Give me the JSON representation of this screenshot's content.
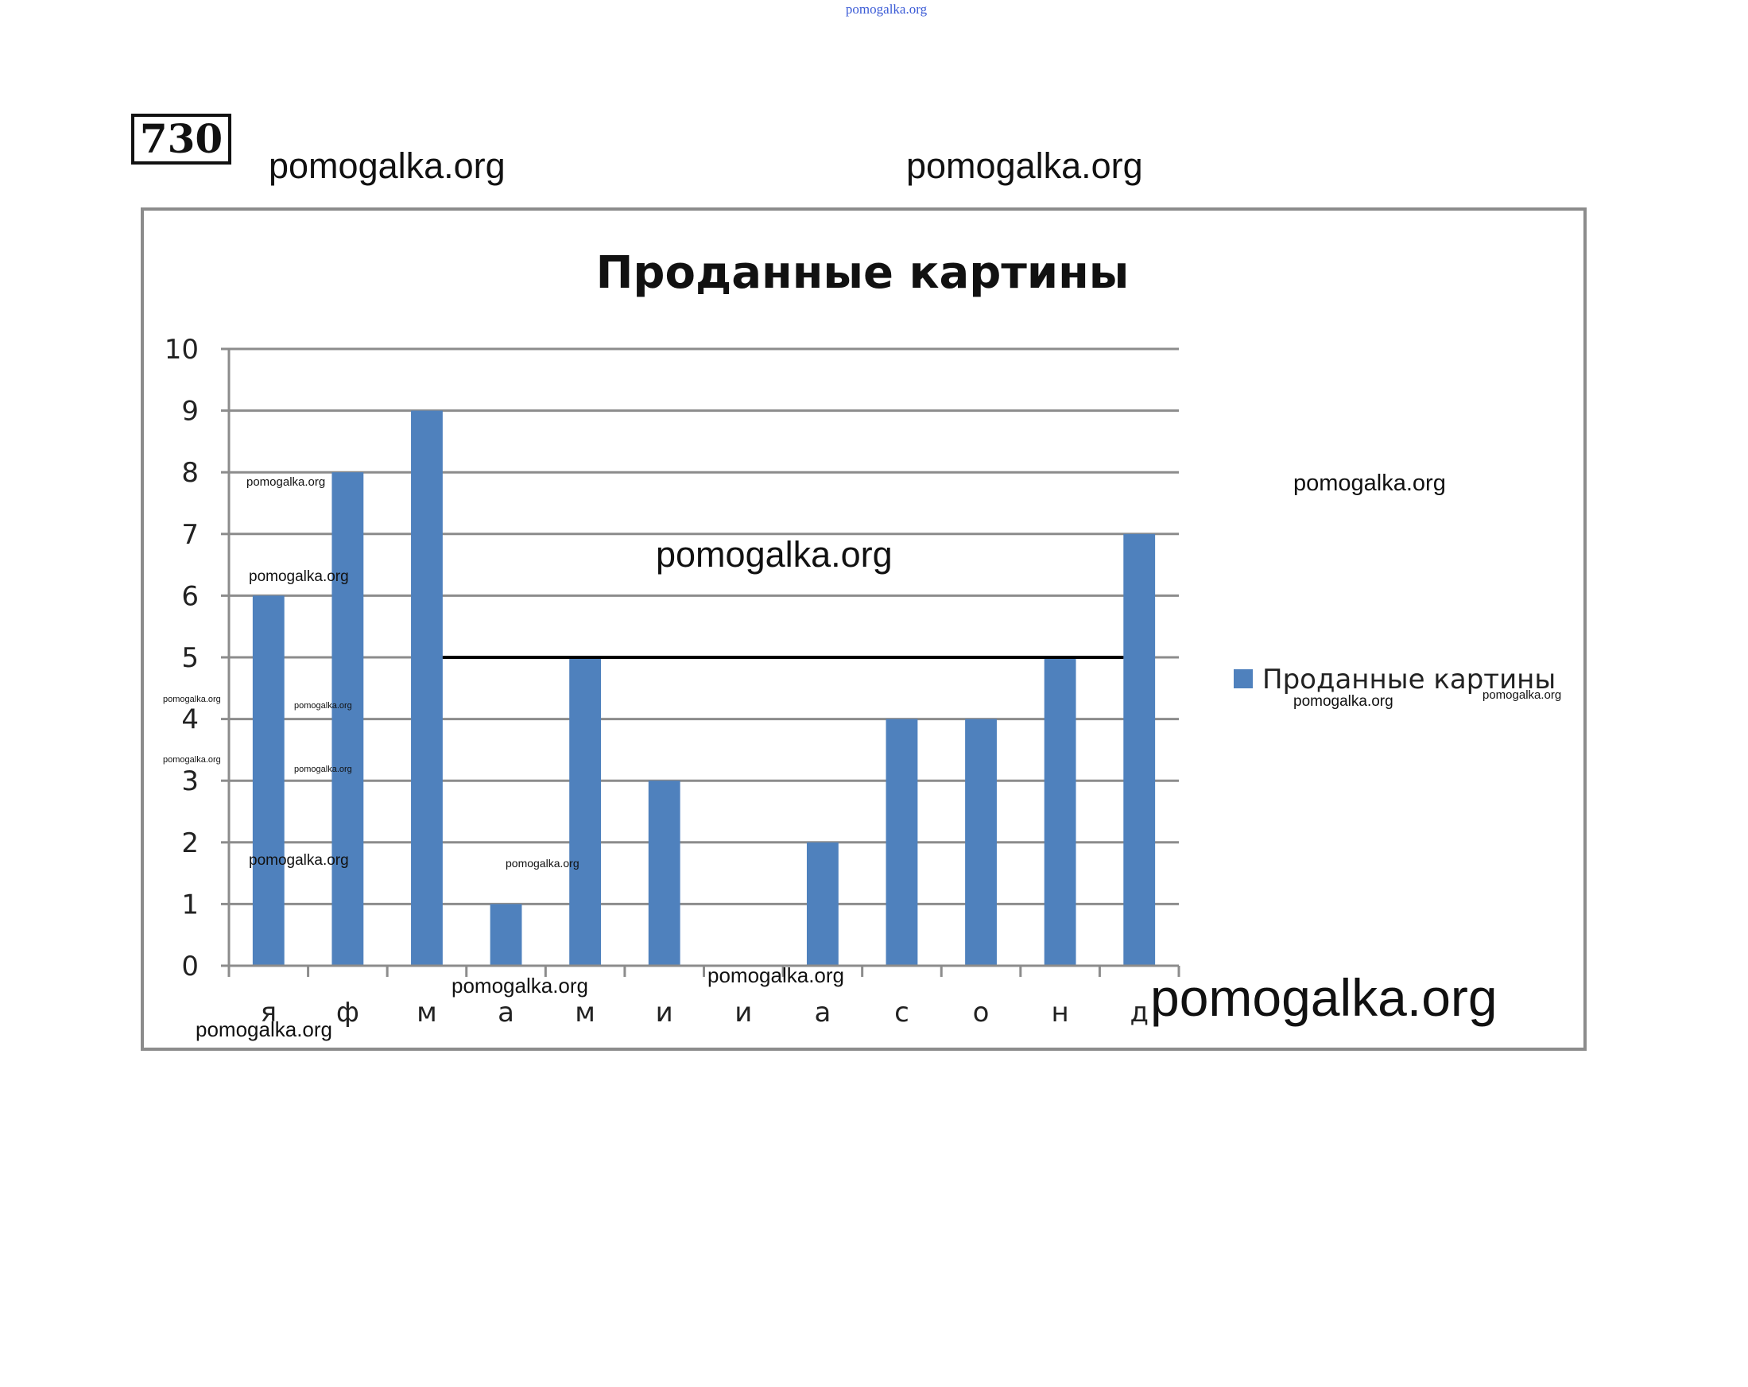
{
  "page": {
    "top_watermark": "pomogalka.org",
    "problem_number": "730",
    "watermarks": {
      "w1": "pomogalka.org",
      "w2": "pomogalka.org",
      "w3": "pomogalka.org",
      "w4": "pomogalka.org",
      "w5": "pomogalka.org",
      "w6": "pomogalka.org",
      "w7": "pomogalka.org",
      "w8": "pomogalka.org",
      "w9": "pomogalka.org",
      "w10": "pomogalka.org",
      "w11": "pomogalka.org",
      "w12": "pomogalka.org",
      "w13": "pomogalka.org",
      "w14": "pomogalka.org",
      "w15": "pomogalka.org",
      "w16": "pomogalka.org",
      "w17": "pomogalka.org",
      "w18": "pomogalka.org",
      "w19": "pomogalka.org"
    }
  },
  "chart_data": {
    "type": "bar",
    "title": "Проданные картины",
    "categories": [
      "я",
      "ф",
      "м",
      "а",
      "м",
      "и",
      "и",
      "а",
      "с",
      "о",
      "н",
      "д"
    ],
    "series": [
      {
        "name": "Проданные картины",
        "values": [
          6,
          8,
          9,
          1,
          5,
          3,
          0,
          2,
          4,
          4,
          5,
          7
        ],
        "color": "#4f81bd"
      }
    ],
    "reference_line": 5,
    "ylim": [
      0,
      10
    ],
    "yticks": [
      0,
      1,
      2,
      3,
      4,
      5,
      6,
      7,
      8,
      9,
      10
    ],
    "grid": true,
    "legend_position": "right",
    "colors": {
      "grid": "#8c8c8c",
      "frame": "#8c8c8c",
      "reference": "#000000"
    }
  }
}
